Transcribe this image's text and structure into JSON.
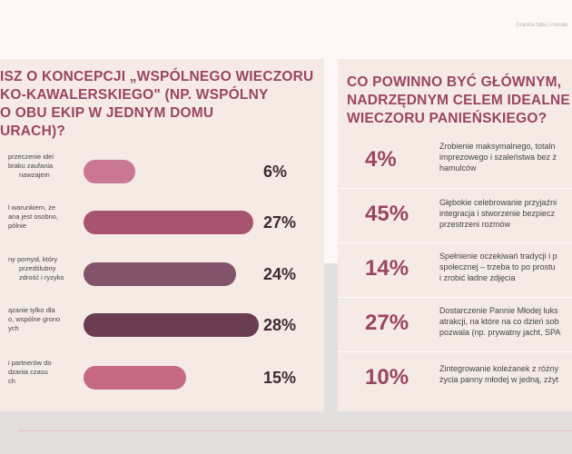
{
  "header": {
    "tag": "Granice tabu i moraln"
  },
  "left_panel": {
    "title_lines": [
      "ISZ O KONCEPCJI „WSPÓLNEGO WIECZORU",
      "KO-KAWALERSKIEGO\" (NP. WSPÓLNY",
      "O OBU EKIP W JEDNYM DOMU",
      "URACH)?"
    ],
    "options": [
      {
        "text_lines": [
          "przeczenie idei",
          "braku zaufania",
          "nawzajem"
        ],
        "value": 6,
        "label": "6%",
        "color": "#c97792"
      },
      {
        "text_lines": [
          "l warunkiem, że",
          "ana jest osobno,",
          "pólnie"
        ],
        "value": 27,
        "label": "27%",
        "color": "#a85470"
      },
      {
        "text_lines": [
          "ny pomysł, który",
          "przedślubny",
          "zdrość i ryzyko"
        ],
        "value": 24,
        "label": "24%",
        "color": "#81546b"
      },
      {
        "text_lines": [
          "ązanie tylko dla",
          "o, wspólne grono",
          "ych"
        ],
        "value": 28,
        "label": "28%",
        "color": "#6b3d52"
      },
      {
        "text_lines": [
          "i partnerów do",
          "dzania czasu",
          "ch"
        ],
        "value": 15,
        "label": "15%",
        "color": "#c66a81"
      }
    ]
  },
  "right_panel": {
    "title_lines": [
      "CO POWINNO BYĆ GŁÓWNYM,",
      "NADRZĘDNYM CELEM IDEALNE",
      "WIECZORU PANIEŃSKIEGO?"
    ],
    "options": [
      {
        "label": "4%",
        "value": 4,
        "text_lines": [
          "Zrobienie maksymalnego, totaln",
          "imprezowego i szaleństwa bez ż",
          "hamulców"
        ]
      },
      {
        "label": "45%",
        "value": 45,
        "text_lines": [
          "Głębokie celebrowanie przyjaźni",
          "integracja i stworzenie bezpiecz",
          "przestrzeni rozmów"
        ]
      },
      {
        "label": "14%",
        "value": 14,
        "text_lines": [
          "Spełnienie oczekiwań tradycji i p",
          "społecznej – trzeba to po prostu",
          "i zrobić ładne zdjęcia"
        ]
      },
      {
        "label": "27%",
        "value": 27,
        "text_lines": [
          "Dostarczenie Pannie Młodej luks",
          "atrakcji, na które na co dzień sob",
          "pozwala (np. prywatny jacht, SPA"
        ]
      },
      {
        "label": "10%",
        "value": 10,
        "text_lines": [
          "Zintegrowanie koleżanek z różny",
          "życia panny młodej w jedną, zżyt"
        ]
      }
    ]
  }
}
